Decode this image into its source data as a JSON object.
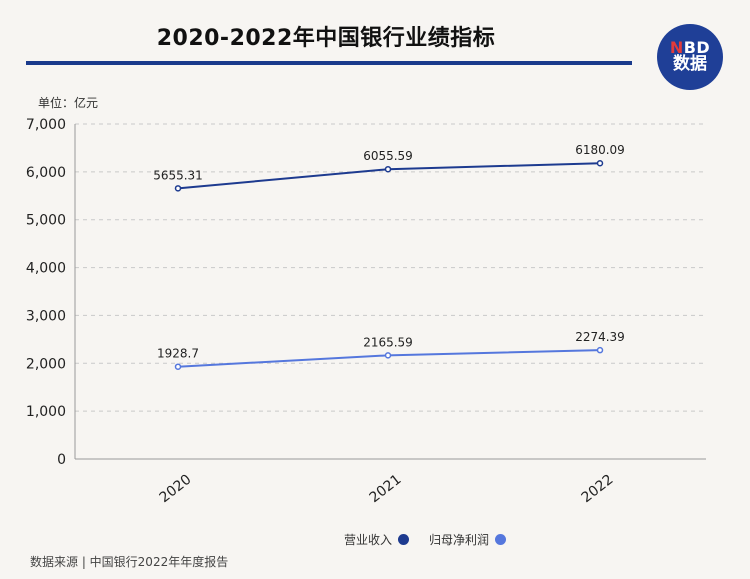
{
  "title": "2020-2022年中国银行业绩指标",
  "logo": {
    "brand_n": "N",
    "brand_rest": "BD",
    "sub": "数据"
  },
  "unit": "单位：亿元",
  "source": "数据来源 | 中国银行2022年年度报告",
  "colors": {
    "revenue": "#1d3a8f",
    "profit": "#5577dd",
    "accent": "#1a3a8c"
  },
  "chart_data": {
    "type": "line",
    "categories": [
      "2020",
      "2021",
      "2022"
    ],
    "series": [
      {
        "name": "营业收入",
        "values": [
          5655.31,
          6055.59,
          6180.09
        ],
        "labels": [
          "5655.31",
          "6055.59",
          "6180.09"
        ]
      },
      {
        "name": "归母净利润",
        "values": [
          1928.7,
          2165.59,
          2274.39
        ],
        "labels": [
          "1928.7",
          "2165.59",
          "2274.39"
        ]
      }
    ],
    "ylim": [
      0,
      7000
    ],
    "yticks": [
      "0",
      "1,000",
      "2,000",
      "3,000",
      "4,000",
      "5,000",
      "6,000",
      "7,000"
    ],
    "legend_position": "bottom",
    "grid": true
  }
}
